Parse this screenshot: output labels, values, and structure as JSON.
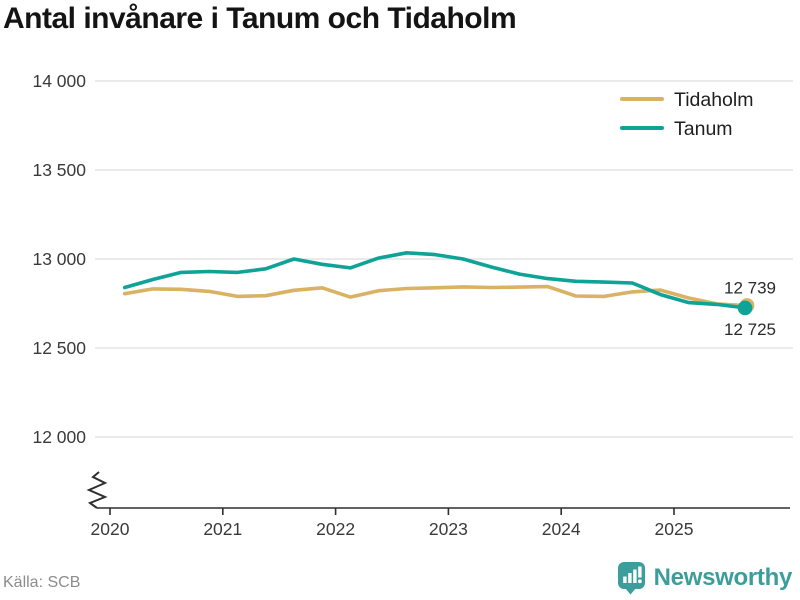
{
  "title": "Antal invånare i Tanum och Tidaholm",
  "source": {
    "text": "Källa: SCB"
  },
  "branding": {
    "name": "Newsworthy",
    "icon": "newsworthy-speech-bubble-chart-icon",
    "color": "#3b9e9b"
  },
  "colors": {
    "tidaholm_line": "#d9b263",
    "tanum_line": "#0fa397",
    "grid": "#e3e3e3",
    "axis": "#2f2f2f",
    "tick_text": "#3a3a3a",
    "end_label_text": "#2b2b2b",
    "legend_text": "#1f1f1f"
  },
  "chart_data": {
    "type": "line",
    "title": "Antal invånare i Tanum och Tidaholm",
    "xlabel": "",
    "ylabel": "",
    "ylim": [
      12000,
      14000
    ],
    "axis_break": true,
    "grid": "horizontal",
    "x_unit": "quarter",
    "x_years": [
      2020.13,
      2020.38,
      2020.63,
      2020.88,
      2021.13,
      2021.38,
      2021.63,
      2021.88,
      2022.13,
      2022.38,
      2022.63,
      2022.88,
      2023.13,
      2023.38,
      2023.63,
      2023.88,
      2024.13,
      2024.38,
      2024.63,
      2024.88,
      2025.13,
      2025.38,
      2025.63
    ],
    "series": [
      {
        "name": "Tidaholm",
        "color": "#d9b263",
        "end_label": "12 739",
        "end_value": 12739,
        "values": [
          12805,
          12832,
          12830,
          12818,
          12790,
          12794,
          12824,
          12838,
          12786,
          12822,
          12834,
          12838,
          12843,
          12840,
          12842,
          12845,
          12792,
          12790,
          12815,
          12825,
          12781,
          12748,
          12739
        ]
      },
      {
        "name": "Tanum",
        "color": "#0fa397",
        "end_label": "12 725",
        "end_value": 12725,
        "values": [
          12840,
          12885,
          12925,
          12930,
          12925,
          12945,
          13000,
          12970,
          12950,
          13005,
          13035,
          13025,
          13000,
          12955,
          12915,
          12890,
          12875,
          12870,
          12865,
          12800,
          12755,
          12745,
          12725
        ]
      }
    ],
    "y_ticks": {
      "labels": [
        "14 000",
        "13 500",
        "13 000",
        "12 500",
        "12 000"
      ],
      "values": [
        14000,
        13500,
        13000,
        12500,
        12000
      ]
    },
    "x_ticks": {
      "labels": [
        "2020",
        "2021",
        "2022",
        "2023",
        "2024",
        "2025"
      ],
      "values": [
        2020,
        2021,
        2022,
        2023,
        2024,
        2025
      ]
    },
    "legend": {
      "position": "top-right",
      "entries": [
        "Tidaholm",
        "Tanum"
      ]
    }
  }
}
